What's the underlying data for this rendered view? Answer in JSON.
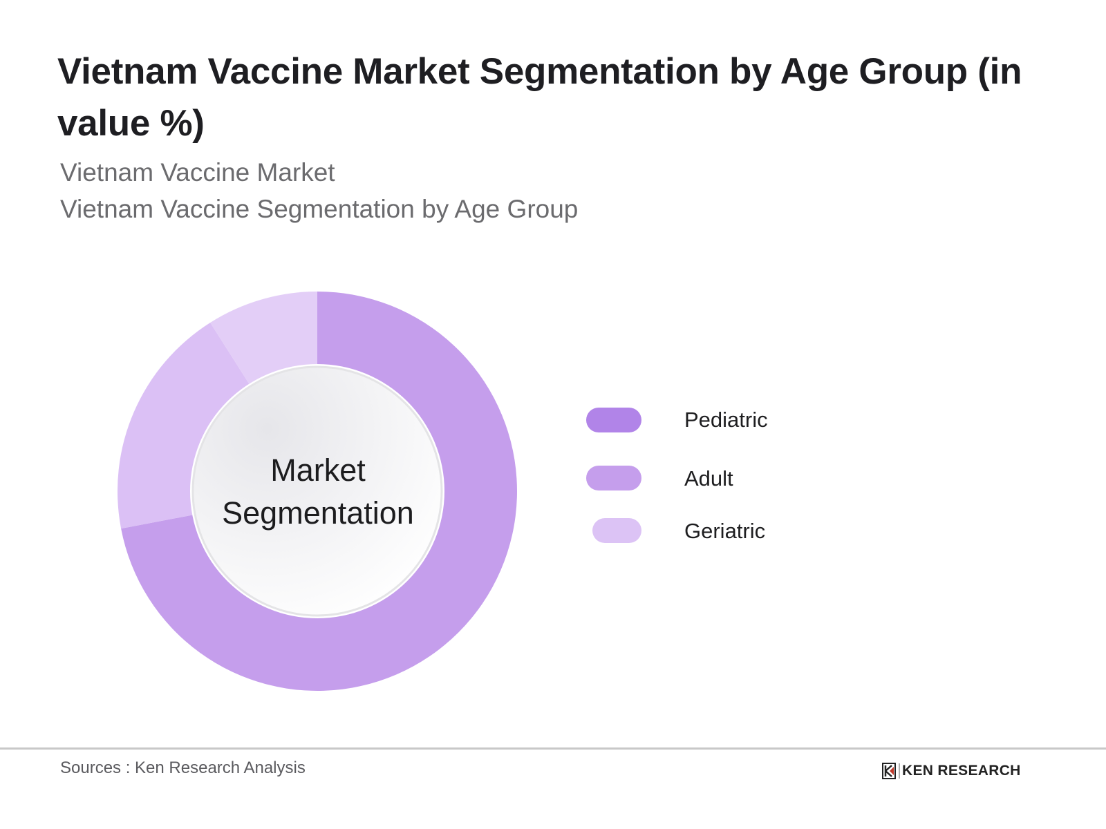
{
  "header": {
    "title": "Vietnam Vaccine Market Segmentation by Age Group (in value %)",
    "subtitle_1": "Vietnam Vaccine Market",
    "subtitle_2": "Vietnam Vaccine Segmentation by Age Group"
  },
  "chart": {
    "center_label_line1": "Market",
    "center_label_line2": "Segmentation"
  },
  "legend": {
    "items": [
      {
        "label": "Pediatric",
        "color": "#b184e8"
      },
      {
        "label": "Adult",
        "color": "#c59eec"
      },
      {
        "label": "Geriatric",
        "color": "#dcc3f5"
      }
    ]
  },
  "footer": {
    "source": "Sources : Ken Research Analysis",
    "logo_text": "KEN RESEARCH"
  },
  "chart_data": {
    "type": "pie",
    "subtype": "donut",
    "title": "Vietnam Vaccine Market Segmentation by Age Group (in value %)",
    "subtitle": "Vietnam Vaccine Market — Vietnam Vaccine Segmentation by Age Group",
    "center_label": "Market Segmentation",
    "categories": [
      "Adult",
      "Pediatric",
      "Geriatric"
    ],
    "values": [
      72,
      19,
      9
    ],
    "colors": [
      "#c59eec",
      "#dbc0f5",
      "#e3cef7"
    ],
    "legend": [
      "Pediatric",
      "Adult",
      "Geriatric"
    ],
    "legend_position": "right",
    "start_angle_deg": 0,
    "direction": "clockwise",
    "note": "Percentages estimated from arc angles; no data labels shown"
  }
}
